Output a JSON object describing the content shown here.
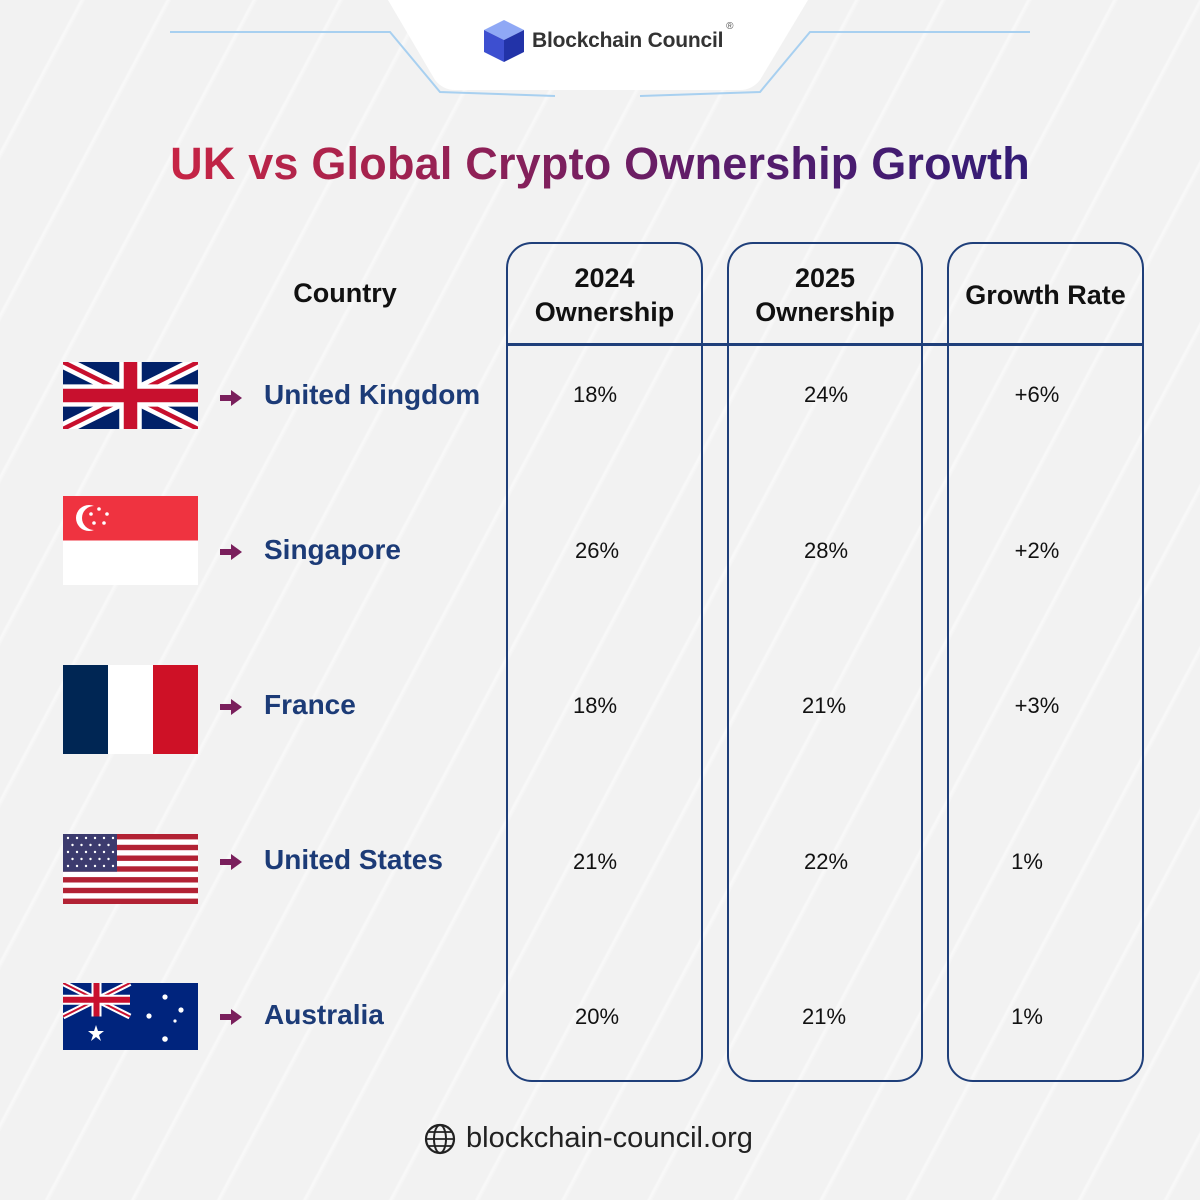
{
  "brand": {
    "name": "Blockchain Council",
    "registered_mark": "®",
    "website": "blockchain-council.org"
  },
  "chart_data": {
    "type": "table",
    "title": "UK vs Global Crypto Ownership Growth",
    "columns": [
      "Country",
      "2024 Ownership",
      "2025 Ownership",
      "Growth Rate"
    ],
    "rows": [
      {
        "country": "United Kingdom",
        "flag": "uk-flag-icon",
        "y2024": "18%",
        "y2025": "24%",
        "growth": "+6%"
      },
      {
        "country": "Singapore",
        "flag": "singapore-flag-icon",
        "y2024": "26%",
        "y2025": "28%",
        "growth": "+2%"
      },
      {
        "country": "France",
        "flag": "france-flag-icon",
        "y2024": "18%",
        "y2025": "21%",
        "growth": "+3%"
      },
      {
        "country": "United States",
        "flag": "us-flag-icon",
        "y2024": "21%",
        "y2025": "22%",
        "growth": "1%"
      },
      {
        "country": "Australia",
        "flag": "australia-flag-icon",
        "y2024": "20%",
        "y2025": "21%",
        "growth": "1%"
      }
    ]
  },
  "colors": {
    "title_gradient": [
      "#e3263d",
      "#1c1c7c"
    ],
    "table_border": "#1f3f7a",
    "country_text": "#1c3b77",
    "arrow": "#7a1f5c"
  }
}
